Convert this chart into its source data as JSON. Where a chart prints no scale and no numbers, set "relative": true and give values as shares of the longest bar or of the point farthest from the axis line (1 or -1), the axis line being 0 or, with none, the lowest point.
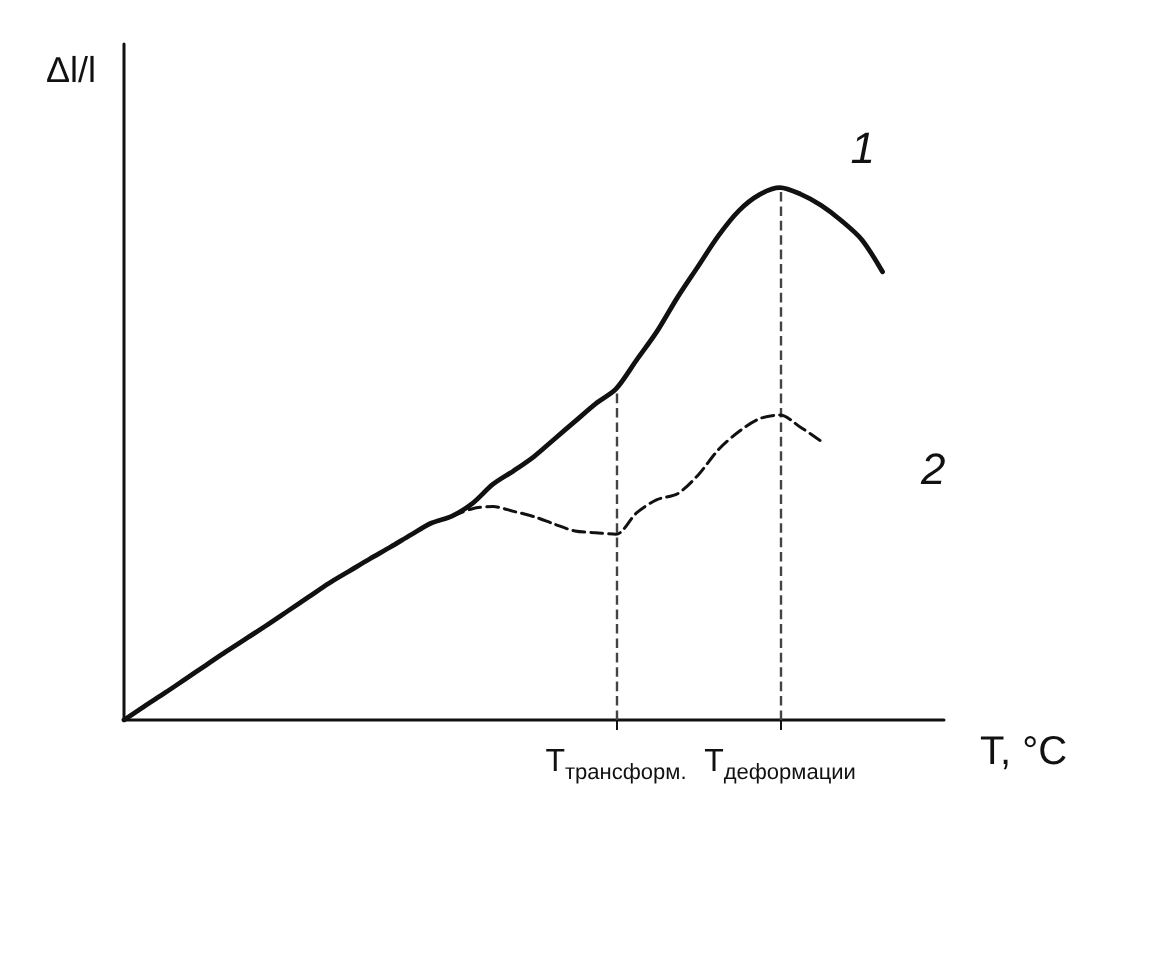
{
  "chart_data": {
    "type": "line",
    "relative": true,
    "xlabel": "T, °C",
    "ylabel": "Δl/l",
    "categories": [
      null,
      null,
      null,
      null,
      null,
      null,
      null,
      null,
      null,
      null,
      null,
      null,
      null,
      null,
      null,
      null,
      null,
      null,
      null,
      null,
      null,
      null,
      null,
      null,
      "T$_{трансформ.}$",
      null,
      null,
      null,
      null,
      null,
      null,
      null,
      "T$_{деформации}$",
      null,
      null,
      null,
      null,
      null,
      null,
      null,
      null
    ],
    "series": [
      {
        "name": "1",
        "color": "#111111",
        "line_style": "solid",
        "values": [
          0,
          0.026,
          0.051,
          0.077,
          0.103,
          0.129,
          0.154,
          0.179,
          0.205,
          0.231,
          0.257,
          0.28,
          0.303,
          0.325,
          0.348,
          0.37,
          0.383,
          0.407,
          0.443,
          0.468,
          0.495,
          0.528,
          0.561,
          0.594,
          0.622,
          0.676,
          0.73,
          0.794,
          0.852,
          0.91,
          0.957,
          0.987,
          1,
          0.988,
          0.967,
          0.938,
          0.902,
          0.842,
          null,
          null,
          null
        ]
      },
      {
        "name": "2",
        "color": "#111111",
        "line_style": "dashed",
        "values": [
          null,
          null,
          null,
          null,
          null,
          null,
          null,
          null,
          null,
          null,
          null,
          null,
          null,
          null,
          null,
          null,
          0.383,
          0.397,
          0.401,
          0.392,
          0.382,
          0.368,
          0.355,
          0.352,
          0.349,
          0.389,
          0.414,
          0.425,
          0.46,
          0.508,
          0.542,
          0.566,
          0.573,
          0.55,
          0.524,
          null,
          null,
          null,
          null,
          null,
          null
        ]
      }
    ],
    "ref_lines": [
      {
        "axis": "x",
        "value": "T$_{трансформ.}$",
        "line_style": "dashed",
        "color": "#444444"
      },
      {
        "axis": "x",
        "value": "T$_{деформации}$",
        "line_style": "dashed",
        "color": "#444444"
      }
    ]
  }
}
